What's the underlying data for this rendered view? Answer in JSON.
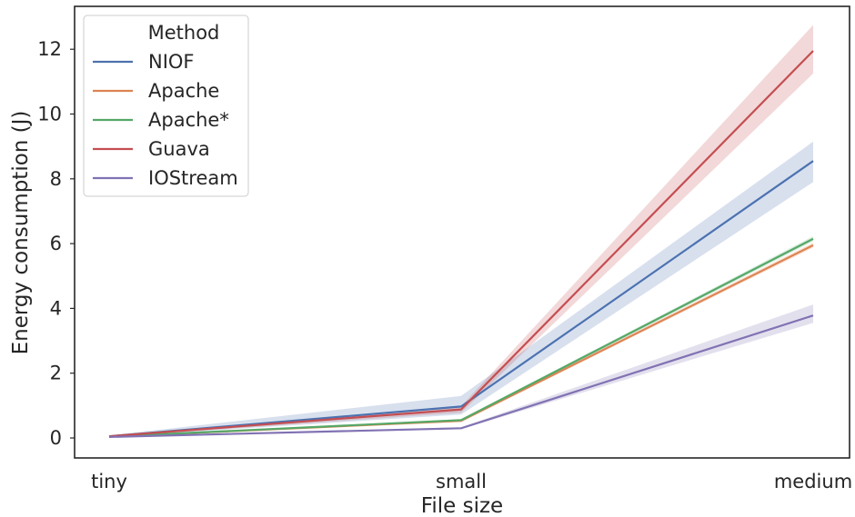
{
  "chart_data": {
    "type": "line",
    "categories": [
      "tiny",
      "small",
      "medium"
    ],
    "xlabel": "File size",
    "ylabel": "Energy consumption (J)",
    "ylim": [
      -0.6,
      13.3
    ],
    "yticks": [
      0,
      2,
      4,
      6,
      8,
      10,
      12
    ],
    "grid": false,
    "legend": {
      "title": "Method",
      "placement": "top-left"
    },
    "series": [
      {
        "name": "NIOF",
        "color": "#4c72b0",
        "values": [
          0.05,
          0.97,
          8.55
        ],
        "ci_low": [
          0.03,
          0.72,
          7.9
        ],
        "ci_high": [
          0.08,
          1.3,
          9.15
        ]
      },
      {
        "name": "Apache",
        "color": "#dd8452",
        "values": [
          0.04,
          0.53,
          5.95
        ],
        "ci_low": [
          0.03,
          0.5,
          5.87
        ],
        "ci_high": [
          0.05,
          0.56,
          6.03
        ]
      },
      {
        "name": "Apache*",
        "color": "#55a868",
        "values": [
          0.04,
          0.55,
          6.15
        ],
        "ci_low": [
          0.03,
          0.52,
          6.07
        ],
        "ci_high": [
          0.05,
          0.58,
          6.23
        ]
      },
      {
        "name": "Guava",
        "color": "#c44e52",
        "values": [
          0.05,
          0.88,
          11.95
        ],
        "ci_low": [
          0.03,
          0.78,
          11.25
        ],
        "ci_high": [
          0.07,
          0.98,
          12.75
        ]
      },
      {
        "name": "IOStream",
        "color": "#8172b3",
        "values": [
          0.03,
          0.3,
          3.78
        ],
        "ci_low": [
          0.02,
          0.27,
          3.55
        ],
        "ci_high": [
          0.04,
          0.33,
          4.12
        ]
      }
    ]
  }
}
